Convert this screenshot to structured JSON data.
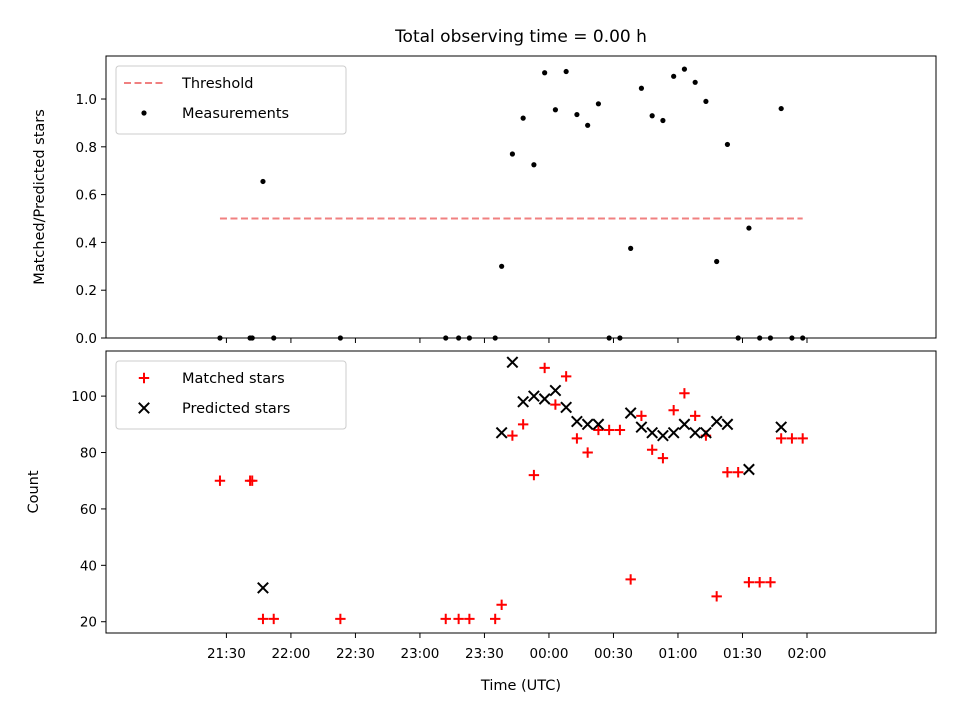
{
  "chart_data": {
    "title": "Total observing time = 0.00 h",
    "xlabel": "Time (UTC)",
    "x_unit": "minutes after 21:00 UTC",
    "xlim": [
      -26,
      360
    ],
    "xticks": [
      {
        "value": 30,
        "label": "21:30"
      },
      {
        "value": 60,
        "label": "22:00"
      },
      {
        "value": 90,
        "label": "22:30"
      },
      {
        "value": 120,
        "label": "23:00"
      },
      {
        "value": 150,
        "label": "23:30"
      },
      {
        "value": 180,
        "label": "00:00"
      },
      {
        "value": 210,
        "label": "00:30"
      },
      {
        "value": 240,
        "label": "01:00"
      },
      {
        "value": 270,
        "label": "01:30"
      },
      {
        "value": 300,
        "label": "02:00"
      }
    ],
    "panels": [
      {
        "type": "scatter",
        "ylabel": "Matched/Predicted stars",
        "ylim": [
          0,
          1.18
        ],
        "yticks": [
          0.0,
          0.2,
          0.4,
          0.6,
          0.8,
          1.0
        ],
        "ytick_labels": [
          "0.0",
          "0.2",
          "0.4",
          "0.6",
          "0.8",
          "1.0"
        ],
        "legend_location": "upper left",
        "threshold": {
          "name": "Threshold",
          "y": 0.5,
          "x": [
            27,
            298
          ],
          "color": "#f08080",
          "style": "dashed"
        },
        "series": [
          {
            "name": "Measurements",
            "marker": "dot",
            "color": "#000000",
            "points": [
              [
                27,
                0.0
              ],
              [
                41,
                0.0
              ],
              [
                42,
                0.0
              ],
              [
                47,
                0.655
              ],
              [
                52,
                0.0
              ],
              [
                83,
                0.0
              ],
              [
                132,
                0.0
              ],
              [
                138,
                0.0
              ],
              [
                143,
                0.0
              ],
              [
                155,
                0.0
              ],
              [
                158,
                0.3
              ],
              [
                163,
                0.77
              ],
              [
                168,
                0.92
              ],
              [
                173,
                0.725
              ],
              [
                178,
                1.11
              ],
              [
                183,
                0.955
              ],
              [
                188,
                1.115
              ],
              [
                193,
                0.935
              ],
              [
                198,
                0.89
              ],
              [
                203,
                0.98
              ],
              [
                208,
                0.0
              ],
              [
                213,
                0.0
              ],
              [
                218,
                0.375
              ],
              [
                223,
                1.045
              ],
              [
                228,
                0.93
              ],
              [
                233,
                0.91
              ],
              [
                238,
                1.095
              ],
              [
                243,
                1.125
              ],
              [
                248,
                1.07
              ],
              [
                253,
                0.99
              ],
              [
                258,
                0.32
              ],
              [
                263,
                0.81
              ],
              [
                268,
                0.0
              ],
              [
                273,
                0.46
              ],
              [
                278,
                0.0
              ],
              [
                283,
                0.0
              ],
              [
                288,
                0.96
              ],
              [
                293,
                0.0
              ],
              [
                298,
                0.0
              ]
            ]
          }
        ]
      },
      {
        "type": "scatter",
        "ylabel": "Count",
        "ylim": [
          16,
          116
        ],
        "yticks": [
          20,
          40,
          60,
          80,
          100
        ],
        "ytick_labels": [
          "20",
          "40",
          "60",
          "80",
          "100"
        ],
        "legend_location": "upper left",
        "series": [
          {
            "name": "Matched stars",
            "marker": "plus",
            "color": "#ff0000",
            "points": [
              [
                27,
                70
              ],
              [
                41,
                70
              ],
              [
                42,
                70
              ],
              [
                47,
                21
              ],
              [
                52,
                21
              ],
              [
                83,
                21
              ],
              [
                132,
                21
              ],
              [
                138,
                21
              ],
              [
                143,
                21
              ],
              [
                155,
                21
              ],
              [
                158,
                26
              ],
              [
                163,
                86
              ],
              [
                168,
                90
              ],
              [
                173,
                72
              ],
              [
                178,
                110
              ],
              [
                183,
                97
              ],
              [
                188,
                107
              ],
              [
                193,
                85
              ],
              [
                198,
                80
              ],
              [
                203,
                88
              ],
              [
                208,
                88
              ],
              [
                213,
                88
              ],
              [
                218,
                35
              ],
              [
                223,
                93
              ],
              [
                228,
                81
              ],
              [
                233,
                78
              ],
              [
                238,
                95
              ],
              [
                243,
                101
              ],
              [
                248,
                93
              ],
              [
                253,
                86
              ],
              [
                258,
                29
              ],
              [
                263,
                73
              ],
              [
                268,
                73
              ],
              [
                273,
                34
              ],
              [
                278,
                34
              ],
              [
                283,
                34
              ],
              [
                288,
                85
              ],
              [
                293,
                85
              ],
              [
                298,
                85
              ]
            ]
          },
          {
            "name": "Predicted stars",
            "marker": "x",
            "color": "#000000",
            "points": [
              [
                47,
                32
              ],
              [
                158,
                87
              ],
              [
                163,
                112
              ],
              [
                168,
                98
              ],
              [
                173,
                100
              ],
              [
                178,
                99
              ],
              [
                183,
                102
              ],
              [
                188,
                96
              ],
              [
                193,
                91
              ],
              [
                198,
                90
              ],
              [
                203,
                90
              ],
              [
                218,
                94
              ],
              [
                223,
                89
              ],
              [
                228,
                87
              ],
              [
                233,
                86
              ],
              [
                238,
                87
              ],
              [
                243,
                90
              ],
              [
                248,
                87
              ],
              [
                253,
                87
              ],
              [
                258,
                91
              ],
              [
                263,
                90
              ],
              [
                273,
                74
              ],
              [
                288,
                89
              ]
            ]
          }
        ]
      }
    ]
  }
}
